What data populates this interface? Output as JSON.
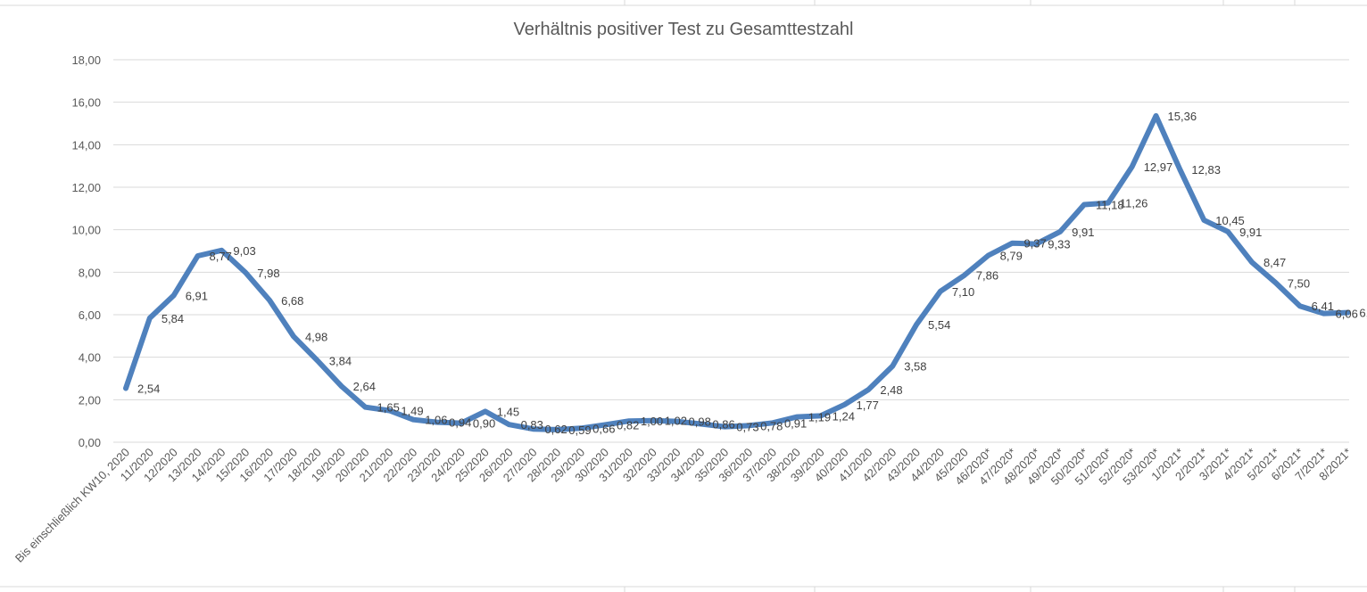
{
  "chart_data": {
    "type": "line",
    "title": "Verhältnis positiver Test zu Gesamttestzahl",
    "xlabel": "",
    "ylabel": "",
    "ylim": [
      0,
      18
    ],
    "y_ticks": [
      "0,00",
      "2,00",
      "4,00",
      "6,00",
      "8,00",
      "10,00",
      "12,00",
      "14,00",
      "16,00",
      "18,00"
    ],
    "grid": true,
    "legend": "none",
    "line_color": "#4f81bd",
    "categories": [
      "Bis einschließlich KW10, 2020",
      "11/2020",
      "12/2020",
      "13/2020",
      "14/2020",
      "15/2020",
      "16/2020",
      "17/2020",
      "18/2020",
      "19/2020",
      "20/2020",
      "21/2020",
      "22/2020",
      "23/2020",
      "24/2020",
      "25/2020",
      "26/2020",
      "27/2020",
      "28/2020",
      "29/2020",
      "30/2020",
      "31/2020",
      "32/2020",
      "33/2020",
      "34/2020",
      "35/2020",
      "36/2020",
      "37/2020",
      "38/2020",
      "39/2020",
      "40/2020",
      "41/2020",
      "42/2020",
      "43/2020",
      "44/2020",
      "45/2020",
      "46/2020*",
      "47/2020*",
      "48/2020*",
      "49/2020*",
      "50/2020*",
      "51/2020*",
      "52/2020*",
      "53/2020*",
      "1/2021*",
      "2/2021*",
      "3/2021*",
      "4/2021*",
      "5/2021*",
      "6/2021*",
      "7/2021*",
      "8/2021*"
    ],
    "values": [
      2.54,
      5.84,
      6.91,
      8.77,
      9.03,
      7.98,
      6.68,
      4.98,
      3.84,
      2.64,
      1.65,
      1.49,
      1.06,
      0.94,
      0.9,
      1.45,
      0.83,
      0.62,
      0.59,
      0.66,
      0.82,
      1.0,
      1.02,
      0.98,
      0.86,
      0.73,
      0.78,
      0.91,
      1.19,
      1.24,
      1.77,
      2.48,
      3.58,
      5.54,
      7.1,
      7.86,
      8.79,
      9.37,
      9.33,
      9.91,
      11.18,
      11.26,
      12.97,
      15.36,
      12.83,
      10.45,
      9.91,
      8.47,
      7.5,
      6.41,
      6.06,
      6.1
    ],
    "data_labels": [
      "2,54",
      "5,84",
      "6,91",
      "8,77",
      "9,03",
      "7,98",
      "6,68",
      "4,98",
      "3,84",
      "2,64",
      "1,65",
      "1,49",
      "1,06",
      "0,94",
      "0,90",
      "1,45",
      "0,83",
      "0,62",
      "0,59",
      "0,66",
      "0,82",
      "1,00",
      "1,02",
      "0,98",
      "0,86",
      "0,73",
      "0,78",
      "0,91",
      "1,19",
      "1,24",
      "1,77",
      "2,48",
      "3,58",
      "5,54",
      "7,10",
      "7,86",
      "8,79",
      "9,37",
      "9,33",
      "9,91",
      "11,18",
      "11,26",
      "12,97",
      "15,36",
      "12,83",
      "10,45",
      "9,91",
      "8,47",
      "7,50",
      "6,41",
      "6,06",
      "6,10"
    ]
  }
}
